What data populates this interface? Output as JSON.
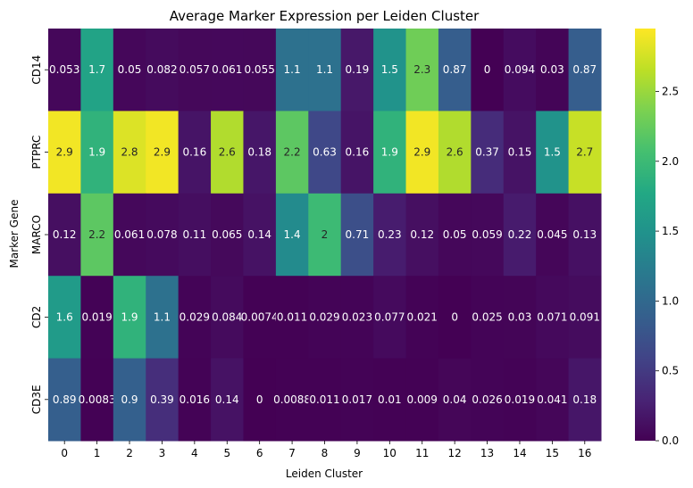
{
  "chart_data": {
    "type": "heatmap",
    "title": "Average Marker Expression per Leiden Cluster",
    "xlabel": "Leiden Cluster",
    "ylabel": "Marker Gene",
    "x_categories": [
      "0",
      "1",
      "2",
      "3",
      "4",
      "5",
      "6",
      "7",
      "8",
      "9",
      "10",
      "11",
      "12",
      "13",
      "14",
      "15",
      "16"
    ],
    "y_categories": [
      "CD14",
      "PTPRC",
      "MARCO",
      "CD2",
      "CD3E"
    ],
    "values": [
      [
        0.053,
        1.7,
        0.05,
        0.082,
        0.057,
        0.061,
        0.055,
        1.1,
        1.1,
        0.19,
        1.5,
        2.3,
        0.87,
        0,
        0.094,
        0.03,
        0.87
      ],
      [
        2.9,
        1.9,
        2.8,
        2.9,
        0.16,
        2.6,
        0.18,
        2.2,
        0.63,
        0.16,
        1.9,
        2.9,
        2.6,
        0.37,
        0.15,
        1.5,
        2.7
      ],
      [
        0.12,
        2.2,
        0.061,
        0.078,
        0.11,
        0.065,
        0.14,
        1.4,
        2,
        0.71,
        0.23,
        0.12,
        0.05,
        0.059,
        0.22,
        0.045,
        0.13
      ],
      [
        1.6,
        0.019,
        1.9,
        1.1,
        0.029,
        0.084,
        0.0074,
        0.011,
        0.029,
        0.023,
        0.077,
        0.021,
        0,
        0.025,
        0.03,
        0.071,
        0.091
      ],
      [
        0.89,
        0.0083,
        0.9,
        0.39,
        0.016,
        0.14,
        0,
        0.0088,
        0.011,
        0.017,
        0.01,
        0.009,
        0.04,
        0.026,
        0.019,
        0.041,
        0.18
      ]
    ],
    "value_labels": [
      [
        "0.053",
        "1.7",
        "0.05",
        "0.082",
        "0.057",
        "0.061",
        "0.055",
        "1.1",
        "1.1",
        "0.19",
        "1.5",
        "2.3",
        "0.87",
        "0",
        "0.094",
        "0.03",
        "0.87"
      ],
      [
        "2.9",
        "1.9",
        "2.8",
        "2.9",
        "0.16",
        "2.6",
        "0.18",
        "2.2",
        "0.63",
        "0.16",
        "1.9",
        "2.9",
        "2.6",
        "0.37",
        "0.15",
        "1.5",
        "2.7"
      ],
      [
        "0.12",
        "2.2",
        "0.061",
        "0.078",
        "0.11",
        "0.065",
        "0.14",
        "1.4",
        "2",
        "0.71",
        "0.23",
        "0.12",
        "0.05",
        "0.059",
        "0.22",
        "0.045",
        "0.13"
      ],
      [
        "1.6",
        "0.019",
        "1.9",
        "1.1",
        "0.029",
        "0.084",
        "0.0074",
        "0.011",
        "0.029",
        "0.023",
        "0.077",
        "0.021",
        "0",
        "0.025",
        "0.03",
        "0.071",
        "0.091"
      ],
      [
        "0.89",
        "0.0083",
        "0.9",
        "0.39",
        "0.016",
        "0.14",
        "0",
        "0.0088",
        "0.011",
        "0.017",
        "0.01",
        "0.009",
        "0.04",
        "0.026",
        "0.019",
        "0.041",
        "0.18"
      ]
    ],
    "colormap": "viridis",
    "colorbar": {
      "range": [
        0,
        2.95
      ],
      "ticks": [
        0,
        0.5,
        1,
        1.5,
        2,
        2.5
      ],
      "tick_labels": [
        "0.0",
        "0.5",
        "1.0",
        "1.5",
        "2.0",
        "2.5"
      ]
    },
    "grid": false
  }
}
